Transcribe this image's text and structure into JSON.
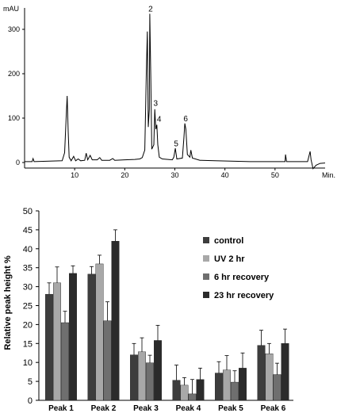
{
  "chart_data": [
    {
      "type": "line",
      "ylabel": "mAU",
      "xlabel": "Min.",
      "xlim": [
        0,
        60
      ],
      "ylim": [
        -15,
        360
      ],
      "x_ticks": [
        10,
        20,
        30,
        40,
        50
      ],
      "y_ticks": [
        0,
        100,
        200,
        300
      ],
      "trace": [
        [
          0.0,
          2
        ],
        [
          1.5,
          2
        ],
        [
          1.7,
          9
        ],
        [
          1.9,
          2
        ],
        [
          5,
          3
        ],
        [
          7.5,
          4
        ],
        [
          8.0,
          22
        ],
        [
          8.3,
          100
        ],
        [
          8.5,
          150
        ],
        [
          8.7,
          70
        ],
        [
          8.9,
          12
        ],
        [
          9.3,
          4
        ],
        [
          9.8,
          14
        ],
        [
          10.2,
          4
        ],
        [
          10.7,
          8
        ],
        [
          11.2,
          4
        ],
        [
          12.0,
          5
        ],
        [
          12.3,
          21
        ],
        [
          12.6,
          6
        ],
        [
          13.1,
          16
        ],
        [
          13.5,
          6
        ],
        [
          14.5,
          6
        ],
        [
          15.0,
          11
        ],
        [
          15.4,
          5
        ],
        [
          17.0,
          5
        ],
        [
          17.6,
          9
        ],
        [
          18.0,
          5
        ],
        [
          20.0,
          6
        ],
        [
          22.0,
          7
        ],
        [
          23.0,
          8
        ],
        [
          23.5,
          11
        ],
        [
          24.0,
          28
        ],
        [
          24.3,
          200
        ],
        [
          24.5,
          295
        ],
        [
          24.7,
          80
        ],
        [
          24.9,
          120
        ],
        [
          25.0,
          335
        ],
        [
          25.2,
          190
        ],
        [
          25.4,
          30
        ],
        [
          25.8,
          40
        ],
        [
          26.0,
          120
        ],
        [
          26.2,
          75
        ],
        [
          26.4,
          85
        ],
        [
          26.6,
          40
        ],
        [
          26.9,
          12
        ],
        [
          27.5,
          8
        ],
        [
          29.5,
          6
        ],
        [
          29.8,
          12
        ],
        [
          30.1,
          32
        ],
        [
          30.4,
          8
        ],
        [
          31.5,
          10
        ],
        [
          31.8,
          55
        ],
        [
          32.0,
          88
        ],
        [
          32.2,
          75
        ],
        [
          32.5,
          18
        ],
        [
          33.0,
          12
        ],
        [
          33.2,
          28
        ],
        [
          33.5,
          10
        ],
        [
          35.0,
          5
        ],
        [
          38.0,
          4
        ],
        [
          45.0,
          2
        ],
        [
          52.0,
          2
        ],
        [
          52.1,
          18
        ],
        [
          52.3,
          2
        ],
        [
          56.5,
          2
        ],
        [
          57.0,
          25
        ],
        [
          57.2,
          6
        ],
        [
          57.6,
          -14
        ],
        [
          58.2,
          -6
        ],
        [
          59.0,
          -2
        ],
        [
          60.0,
          -1
        ]
      ],
      "peak_labels": [
        {
          "label": "2",
          "x": 25.0,
          "y": 340
        },
        {
          "label": "3",
          "x": 26.0,
          "y": 128
        },
        {
          "label": "4",
          "x": 26.7,
          "y": 92
        },
        {
          "label": "5",
          "x": 30.1,
          "y": 37
        },
        {
          "label": "6",
          "x": 32.0,
          "y": 93
        }
      ]
    },
    {
      "type": "bar",
      "ylabel": "Relative peak height  %",
      "xlabel": "",
      "ylim": [
        0,
        50
      ],
      "y_ticks": [
        0,
        5,
        10,
        15,
        20,
        25,
        30,
        35,
        40,
        45,
        50
      ],
      "categories": [
        "Peak 1",
        "Peak 2",
        "Peak 3",
        "Peak 4",
        "Peak 5",
        "Peak 6"
      ],
      "series": [
        {
          "name": "control",
          "color": "#3d3d3d",
          "values": [
            28,
            33.3,
            12,
            5.3,
            7.2,
            14.5
          ],
          "errors": [
            3,
            2,
            3,
            4,
            3,
            4
          ]
        },
        {
          "name": "UV 2 hr",
          "color": "#a8a8a8",
          "values": [
            31,
            36,
            12.8,
            4,
            8,
            12.3
          ],
          "errors": [
            4.2,
            2.3,
            3.7,
            2,
            3.8,
            2.7
          ]
        },
        {
          "name": "6 hr recovery",
          "color": "#6f6f6f",
          "values": [
            20.5,
            21,
            9.9,
            1.7,
            4.8,
            6.8
          ],
          "errors": [
            3,
            5,
            2,
            3.8,
            3,
            3
          ]
        },
        {
          "name": "23 hr recovery",
          "color": "#2b2b2b",
          "values": [
            33.5,
            42,
            15.8,
            5.5,
            8.5,
            15
          ],
          "errors": [
            2,
            3,
            4,
            3,
            4,
            3.8
          ]
        }
      ],
      "legend_position": "right"
    }
  ]
}
